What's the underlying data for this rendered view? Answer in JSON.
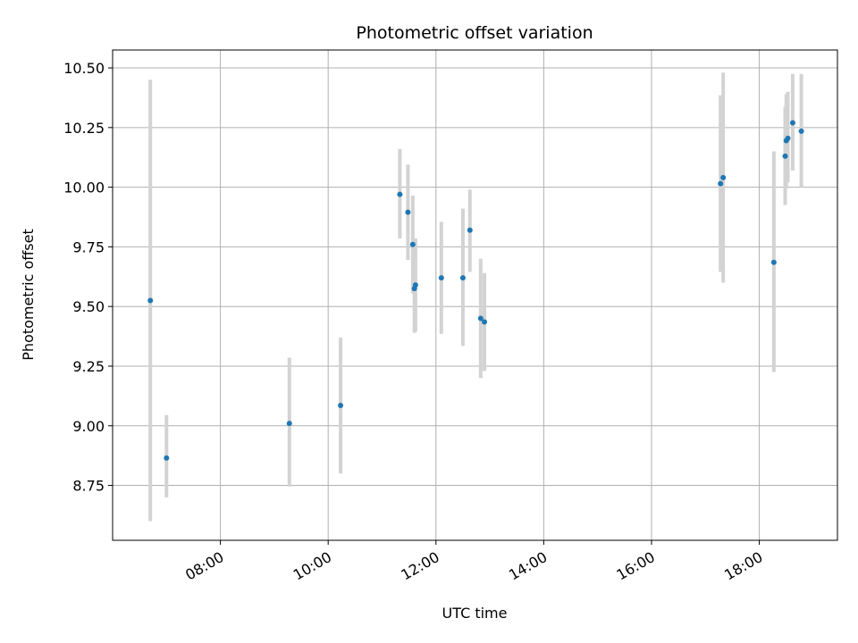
{
  "chart_data": {
    "type": "scatter",
    "title": "Photometric offset variation",
    "xlabel": "UTC time",
    "ylabel": "Photometric offset",
    "x_unit": "hours (UTC)",
    "xlim": [
      6.0,
      19.45
    ],
    "ylim": [
      8.52,
      10.575
    ],
    "grid": true,
    "x_ticks": [
      {
        "value": 8,
        "label": "08:00"
      },
      {
        "value": 10,
        "label": "10:00"
      },
      {
        "value": 12,
        "label": "12:00"
      },
      {
        "value": 14,
        "label": "14:00"
      },
      {
        "value": 16,
        "label": "16:00"
      },
      {
        "value": 18,
        "label": "18:00"
      }
    ],
    "y_ticks": [
      {
        "value": 8.75,
        "label": "8.75"
      },
      {
        "value": 9.0,
        "label": "9.00"
      },
      {
        "value": 9.25,
        "label": "9.25"
      },
      {
        "value": 9.5,
        "label": "9.50"
      },
      {
        "value": 9.75,
        "label": "9.75"
      },
      {
        "value": 10.0,
        "label": "10.00"
      },
      {
        "value": 10.25,
        "label": "10.25"
      },
      {
        "value": 10.5,
        "label": "10.50"
      }
    ],
    "colors": {
      "point": "#1f77b4",
      "errorbar": "#d3d3d3",
      "grid": "#b0b0b0"
    },
    "points": [
      {
        "x": 6.7,
        "y": 9.525,
        "err_low": 8.6,
        "err_high": 10.45
      },
      {
        "x": 7.0,
        "y": 8.865,
        "err_low": 8.7,
        "err_high": 9.045
      },
      {
        "x": 9.28,
        "y": 9.01,
        "err_low": 8.745,
        "err_high": 9.285
      },
      {
        "x": 10.23,
        "y": 9.085,
        "err_low": 8.8,
        "err_high": 9.37
      },
      {
        "x": 11.33,
        "y": 9.97,
        "err_low": 9.785,
        "err_high": 10.16
      },
      {
        "x": 11.48,
        "y": 9.895,
        "err_low": 9.695,
        "err_high": 10.095
      },
      {
        "x": 11.57,
        "y": 9.76,
        "err_low": 9.555,
        "err_high": 9.965
      },
      {
        "x": 11.6,
        "y": 9.575,
        "err_low": 9.39,
        "err_high": 9.785
      },
      {
        "x": 11.62,
        "y": 9.59,
        "err_low": 9.395,
        "err_high": 9.785
      },
      {
        "x": 12.1,
        "y": 9.62,
        "err_low": 9.385,
        "err_high": 9.855
      },
      {
        "x": 12.5,
        "y": 9.62,
        "err_low": 9.335,
        "err_high": 9.91
      },
      {
        "x": 12.63,
        "y": 9.82,
        "err_low": 9.645,
        "err_high": 9.99
      },
      {
        "x": 12.83,
        "y": 9.45,
        "err_low": 9.2,
        "err_high": 9.7
      },
      {
        "x": 12.9,
        "y": 9.435,
        "err_low": 9.23,
        "err_high": 9.64
      },
      {
        "x": 17.28,
        "y": 10.015,
        "err_low": 9.645,
        "err_high": 10.385
      },
      {
        "x": 17.33,
        "y": 10.04,
        "err_low": 9.6,
        "err_high": 10.48
      },
      {
        "x": 18.27,
        "y": 9.685,
        "err_low": 9.225,
        "err_high": 10.15
      },
      {
        "x": 18.48,
        "y": 10.13,
        "err_low": 9.925,
        "err_high": 10.335
      },
      {
        "x": 18.5,
        "y": 10.195,
        "err_low": 9.995,
        "err_high": 10.39
      },
      {
        "x": 18.53,
        "y": 10.205,
        "err_low": 10.02,
        "err_high": 10.4
      },
      {
        "x": 18.62,
        "y": 10.27,
        "err_low": 10.07,
        "err_high": 10.475
      },
      {
        "x": 18.78,
        "y": 10.235,
        "err_low": 10.0,
        "err_high": 10.475
      }
    ]
  }
}
